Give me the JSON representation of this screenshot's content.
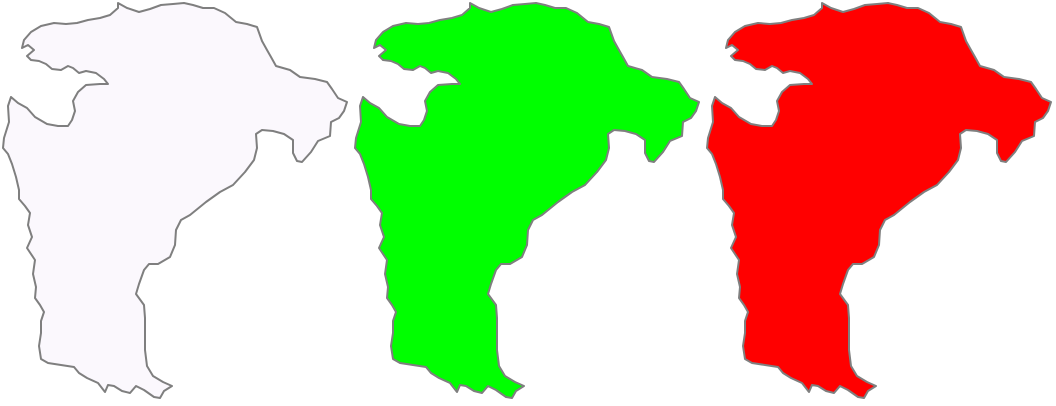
{
  "map": {
    "background_color": "#ffffff",
    "outline_color": "#7f7f7f",
    "regions": [
      {
        "id": "region-1",
        "shape": "region-outline",
        "fill_color": "#fbf8fd",
        "state": "unhighlighted"
      },
      {
        "id": "region-2",
        "shape": "region-outline",
        "fill_color": "#00ff00",
        "state": "highlighted-green"
      },
      {
        "id": "region-3",
        "shape": "region-outline",
        "fill_color": "#ff0000",
        "state": "highlighted-red"
      }
    ]
  }
}
